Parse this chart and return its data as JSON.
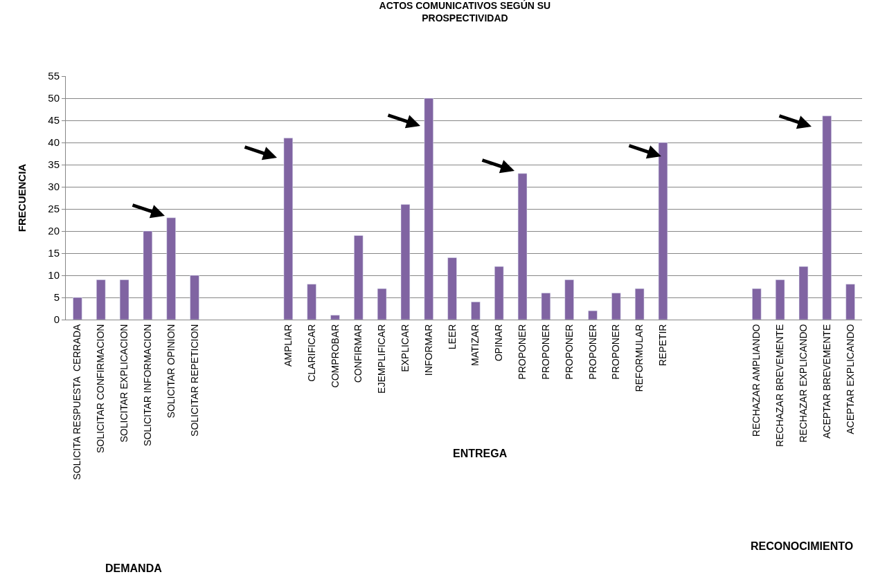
{
  "chart_data": {
    "type": "bar",
    "title": "ACTOS COMUNICATIVOS SEGÚN SU PROSPECTIVIDAD",
    "ylabel": "FRECUENCIA",
    "categories": [
      "SOLICITA RESPUESTA  CERRADA",
      "SOLICITAR CONFIRMACION",
      "SOLICITAR EXPLICACION",
      "SOLICITAR INFORMACION",
      "SOLICITAR OPINION",
      "SOLICITAR REPETICION",
      null,
      null,
      null,
      "AMPLIAR",
      "CLARIFICAR",
      "COMPROBAR",
      "CONFIRMAR",
      "EJEMPLIFICAR",
      "EXPLICAR",
      "INFORMAR",
      "LEER",
      "MATIZAR",
      "OPINAR",
      "PROPONER",
      "PROPONER",
      "PROPONER",
      "PROPONER",
      "PROPONER",
      "REFORMULAR",
      "REPETIR",
      null,
      null,
      null,
      "RECHAZAR AMPLIANDO",
      "RECHAZAR BREVEMENTE",
      "RECHAZAR EXPLICANDO",
      "ACEPTAR BREVEMENTE",
      "ACEPTAR EXPLICANDO"
    ],
    "values": [
      5,
      9,
      9,
      20,
      23,
      10,
      null,
      null,
      null,
      41,
      8,
      1,
      19,
      7,
      26,
      50,
      14,
      4,
      12,
      33,
      6,
      9,
      2,
      6,
      7,
      40,
      null,
      null,
      null,
      7,
      9,
      12,
      46,
      8
    ],
    "color": "#8064a2",
    "ylim": [
      0,
      55
    ],
    "yticks": [
      0,
      5,
      10,
      15,
      20,
      25,
      30,
      35,
      40,
      45,
      50,
      55
    ],
    "grid": "y",
    "legend": false,
    "annotations": [
      "DEMANDA",
      "ENTREGA",
      "RECONOCIMIENTO"
    ]
  }
}
